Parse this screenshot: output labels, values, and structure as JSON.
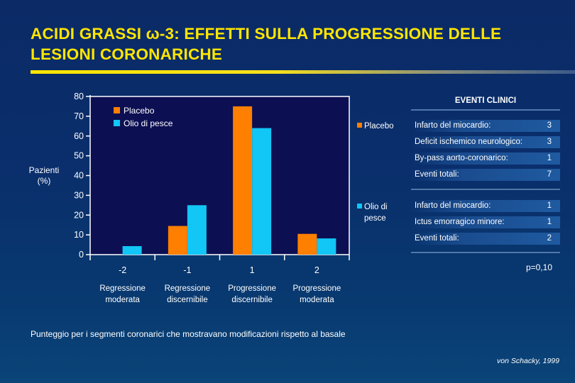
{
  "title": "ACIDI GRASSI ω-3: EFFETTI SULLA PROGRESSIONE DELLE LESIONI CORONARICHE",
  "footnote": "Punteggio per i segmenti coronarici che mostravano modificazioni rispetto al basale",
  "source": "von Schacky, 1999",
  "colors": {
    "placebo": "#ff7f00",
    "olio_di_pesce": "#12c6f5",
    "title": "#ffe600",
    "plot_bg": "#0c0f52"
  },
  "chart_data": {
    "type": "bar",
    "ylabel": "Pazienti\n(%)",
    "ylim": [
      0,
      80
    ],
    "yticks": [
      0,
      10,
      20,
      30,
      40,
      50,
      60,
      70,
      80
    ],
    "categories": [
      "-2",
      "-1",
      "1",
      "2"
    ],
    "category_descriptions": [
      "Regressione\nmoderata",
      "Regressione\ndiscernibile",
      "Progressione\ndiscernibile",
      "Progressione\nmoderata"
    ],
    "series": [
      {
        "name": "Placebo",
        "values": [
          0,
          14.5,
          75,
          10.5
        ]
      },
      {
        "name": "Olio di pesce",
        "values": [
          4.3,
          25,
          64,
          8.2
        ]
      }
    ],
    "legend_position": "top-left"
  },
  "events": {
    "header": "EVENTI CLINICI",
    "groups": [
      {
        "label": "Placebo",
        "rows": [
          {
            "name": "Infarto del miocardio:",
            "value": "3"
          },
          {
            "name": "Deficit ischemico neurologico:",
            "value": "3"
          },
          {
            "name": "By-pass aorto-coronarico:",
            "value": "1"
          },
          {
            "name": "Eventi totali:",
            "value": "7"
          }
        ]
      },
      {
        "label": "Olio di pesce",
        "rows": [
          {
            "name": "Infarto del miocardio:",
            "value": "1"
          },
          {
            "name": "Ictus emorragico minore:",
            "value": "1"
          },
          {
            "name": "Eventi totali:",
            "value": "2"
          }
        ]
      }
    ],
    "p_value": "p=0,10"
  }
}
